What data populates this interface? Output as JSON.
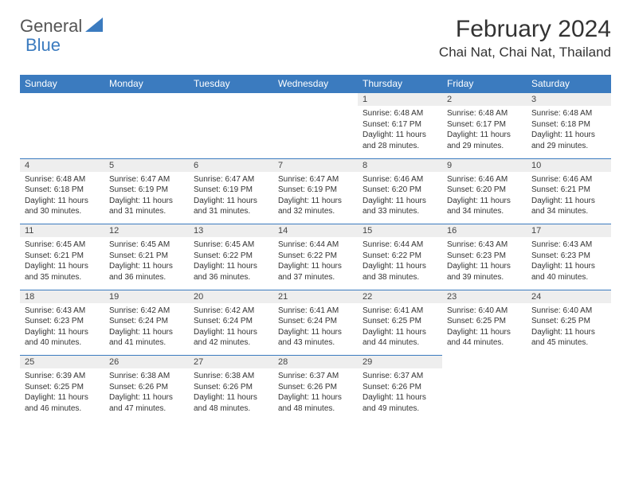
{
  "logo": {
    "text1": "General",
    "text2": "Blue"
  },
  "title": "February 2024",
  "location": "Chai Nat, Chai Nat, Thailand",
  "colors": {
    "header_bg": "#3b7bbf",
    "header_text": "#ffffff",
    "daynum_bg": "#eeeeee",
    "border": "#3b7bbf",
    "body_bg": "#ffffff",
    "text": "#333333"
  },
  "weekdays": [
    "Sunday",
    "Monday",
    "Tuesday",
    "Wednesday",
    "Thursday",
    "Friday",
    "Saturday"
  ],
  "weeks": [
    [
      null,
      null,
      null,
      null,
      {
        "n": "1",
        "sr": "6:48 AM",
        "ss": "6:17 PM",
        "dl": "11 hours and 28 minutes."
      },
      {
        "n": "2",
        "sr": "6:48 AM",
        "ss": "6:17 PM",
        "dl": "11 hours and 29 minutes."
      },
      {
        "n": "3",
        "sr": "6:48 AM",
        "ss": "6:18 PM",
        "dl": "11 hours and 29 minutes."
      }
    ],
    [
      {
        "n": "4",
        "sr": "6:48 AM",
        "ss": "6:18 PM",
        "dl": "11 hours and 30 minutes."
      },
      {
        "n": "5",
        "sr": "6:47 AM",
        "ss": "6:19 PM",
        "dl": "11 hours and 31 minutes."
      },
      {
        "n": "6",
        "sr": "6:47 AM",
        "ss": "6:19 PM",
        "dl": "11 hours and 31 minutes."
      },
      {
        "n": "7",
        "sr": "6:47 AM",
        "ss": "6:19 PM",
        "dl": "11 hours and 32 minutes."
      },
      {
        "n": "8",
        "sr": "6:46 AM",
        "ss": "6:20 PM",
        "dl": "11 hours and 33 minutes."
      },
      {
        "n": "9",
        "sr": "6:46 AM",
        "ss": "6:20 PM",
        "dl": "11 hours and 34 minutes."
      },
      {
        "n": "10",
        "sr": "6:46 AM",
        "ss": "6:21 PM",
        "dl": "11 hours and 34 minutes."
      }
    ],
    [
      {
        "n": "11",
        "sr": "6:45 AM",
        "ss": "6:21 PM",
        "dl": "11 hours and 35 minutes."
      },
      {
        "n": "12",
        "sr": "6:45 AM",
        "ss": "6:21 PM",
        "dl": "11 hours and 36 minutes."
      },
      {
        "n": "13",
        "sr": "6:45 AM",
        "ss": "6:22 PM",
        "dl": "11 hours and 36 minutes."
      },
      {
        "n": "14",
        "sr": "6:44 AM",
        "ss": "6:22 PM",
        "dl": "11 hours and 37 minutes."
      },
      {
        "n": "15",
        "sr": "6:44 AM",
        "ss": "6:22 PM",
        "dl": "11 hours and 38 minutes."
      },
      {
        "n": "16",
        "sr": "6:43 AM",
        "ss": "6:23 PM",
        "dl": "11 hours and 39 minutes."
      },
      {
        "n": "17",
        "sr": "6:43 AM",
        "ss": "6:23 PM",
        "dl": "11 hours and 40 minutes."
      }
    ],
    [
      {
        "n": "18",
        "sr": "6:43 AM",
        "ss": "6:23 PM",
        "dl": "11 hours and 40 minutes."
      },
      {
        "n": "19",
        "sr": "6:42 AM",
        "ss": "6:24 PM",
        "dl": "11 hours and 41 minutes."
      },
      {
        "n": "20",
        "sr": "6:42 AM",
        "ss": "6:24 PM",
        "dl": "11 hours and 42 minutes."
      },
      {
        "n": "21",
        "sr": "6:41 AM",
        "ss": "6:24 PM",
        "dl": "11 hours and 43 minutes."
      },
      {
        "n": "22",
        "sr": "6:41 AM",
        "ss": "6:25 PM",
        "dl": "11 hours and 44 minutes."
      },
      {
        "n": "23",
        "sr": "6:40 AM",
        "ss": "6:25 PM",
        "dl": "11 hours and 44 minutes."
      },
      {
        "n": "24",
        "sr": "6:40 AM",
        "ss": "6:25 PM",
        "dl": "11 hours and 45 minutes."
      }
    ],
    [
      {
        "n": "25",
        "sr": "6:39 AM",
        "ss": "6:25 PM",
        "dl": "11 hours and 46 minutes."
      },
      {
        "n": "26",
        "sr": "6:38 AM",
        "ss": "6:26 PM",
        "dl": "11 hours and 47 minutes."
      },
      {
        "n": "27",
        "sr": "6:38 AM",
        "ss": "6:26 PM",
        "dl": "11 hours and 48 minutes."
      },
      {
        "n": "28",
        "sr": "6:37 AM",
        "ss": "6:26 PM",
        "dl": "11 hours and 48 minutes."
      },
      {
        "n": "29",
        "sr": "6:37 AM",
        "ss": "6:26 PM",
        "dl": "11 hours and 49 minutes."
      },
      null,
      null
    ]
  ],
  "labels": {
    "sunrise": "Sunrise:",
    "sunset": "Sunset:",
    "daylight": "Daylight:"
  }
}
